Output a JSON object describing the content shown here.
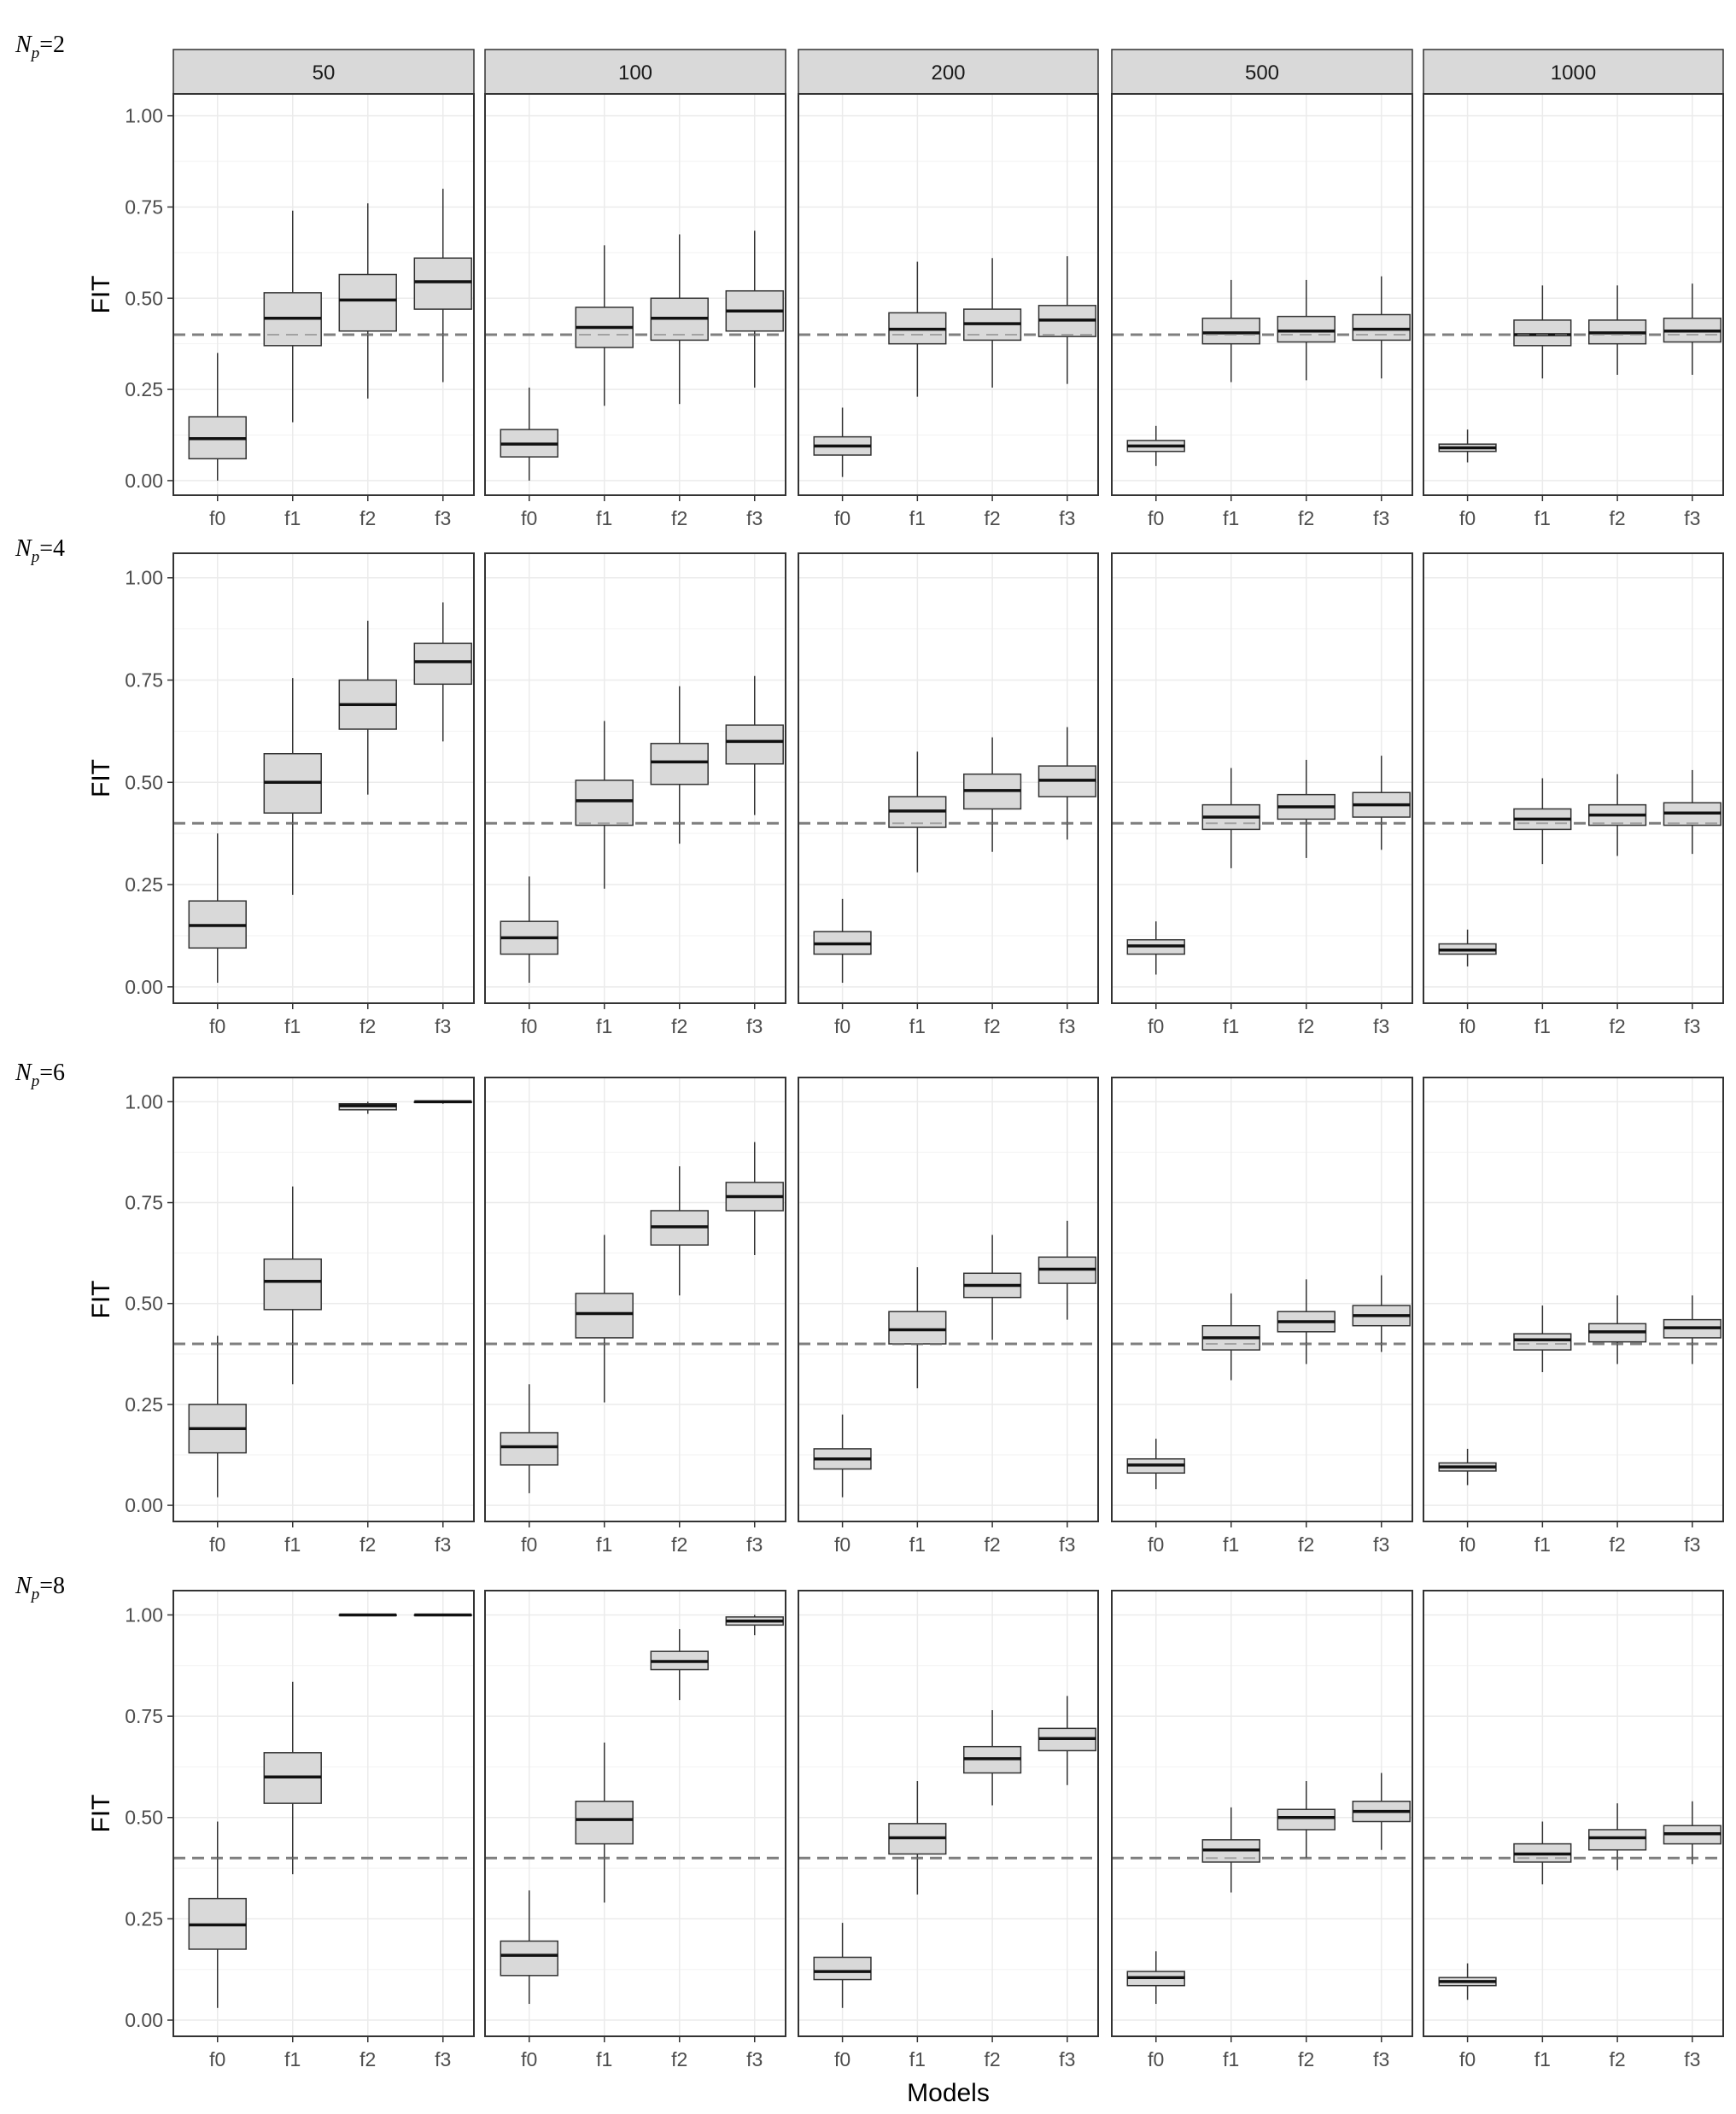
{
  "chart_data": {
    "type": "boxplot",
    "facet_columns": [
      "50",
      "100",
      "200",
      "500",
      "1000"
    ],
    "facet_rows": [
      {
        "label_var": "N",
        "label_sub": "p",
        "label_value": "=2"
      },
      {
        "label_var": "N",
        "label_sub": "p",
        "label_value": "=4"
      },
      {
        "label_var": "N",
        "label_sub": "p",
        "label_value": "=6"
      },
      {
        "label_var": "N",
        "label_sub": "p",
        "label_value": "=8"
      }
    ],
    "categories": [
      "f0",
      "f1",
      "f2",
      "f3"
    ],
    "ylabel": "FIT",
    "xlabel": "Models",
    "ylim": [
      -0.04,
      1.06
    ],
    "yticks": [
      0.0,
      0.25,
      0.5,
      0.75,
      1.0
    ],
    "ytick_labels": [
      "0.00",
      "0.25",
      "0.50",
      "0.75",
      "1.00"
    ],
    "reference_line": 0.4,
    "grid": true,
    "box_fill": "#d9d9d9",
    "panels": [
      [
        [
          [
            0.0,
            0.06,
            0.115,
            0.175,
            0.35
          ],
          [
            0.16,
            0.37,
            0.445,
            0.515,
            0.74
          ],
          [
            0.225,
            0.41,
            0.495,
            0.565,
            0.76
          ],
          [
            0.27,
            0.47,
            0.545,
            0.61,
            0.8
          ]
        ],
        [
          [
            0.0,
            0.065,
            0.1,
            0.14,
            0.255
          ],
          [
            0.205,
            0.365,
            0.42,
            0.475,
            0.645
          ],
          [
            0.21,
            0.385,
            0.445,
            0.5,
            0.675
          ],
          [
            0.255,
            0.41,
            0.465,
            0.52,
            0.685
          ]
        ],
        [
          [
            0.01,
            0.07,
            0.095,
            0.12,
            0.2
          ],
          [
            0.23,
            0.375,
            0.415,
            0.46,
            0.6
          ],
          [
            0.255,
            0.385,
            0.43,
            0.47,
            0.61
          ],
          [
            0.265,
            0.395,
            0.44,
            0.48,
            0.615
          ]
        ],
        [
          [
            0.04,
            0.08,
            0.095,
            0.11,
            0.15
          ],
          [
            0.27,
            0.375,
            0.405,
            0.445,
            0.55
          ],
          [
            0.275,
            0.38,
            0.41,
            0.45,
            0.55
          ],
          [
            0.28,
            0.385,
            0.415,
            0.455,
            0.56
          ]
        ],
        [
          [
            0.05,
            0.08,
            0.09,
            0.1,
            0.14
          ],
          [
            0.28,
            0.37,
            0.4,
            0.44,
            0.535
          ],
          [
            0.29,
            0.375,
            0.405,
            0.44,
            0.535
          ],
          [
            0.29,
            0.38,
            0.41,
            0.445,
            0.54
          ]
        ]
      ],
      [
        [
          [
            0.01,
            0.095,
            0.15,
            0.21,
            0.375
          ],
          [
            0.225,
            0.425,
            0.5,
            0.57,
            0.755
          ],
          [
            0.47,
            0.63,
            0.69,
            0.75,
            0.895
          ],
          [
            0.6,
            0.74,
            0.795,
            0.84,
            0.94
          ]
        ],
        [
          [
            0.01,
            0.08,
            0.12,
            0.16,
            0.27
          ],
          [
            0.24,
            0.395,
            0.455,
            0.505,
            0.65
          ],
          [
            0.35,
            0.495,
            0.55,
            0.595,
            0.735
          ],
          [
            0.42,
            0.545,
            0.6,
            0.64,
            0.76
          ]
        ],
        [
          [
            0.01,
            0.08,
            0.105,
            0.135,
            0.215
          ],
          [
            0.28,
            0.39,
            0.43,
            0.465,
            0.575
          ],
          [
            0.33,
            0.435,
            0.48,
            0.52,
            0.61
          ],
          [
            0.36,
            0.465,
            0.505,
            0.54,
            0.635
          ]
        ],
        [
          [
            0.03,
            0.08,
            0.1,
            0.115,
            0.16
          ],
          [
            0.29,
            0.385,
            0.415,
            0.445,
            0.535
          ],
          [
            0.315,
            0.41,
            0.44,
            0.47,
            0.555
          ],
          [
            0.335,
            0.415,
            0.445,
            0.475,
            0.565
          ]
        ],
        [
          [
            0.05,
            0.08,
            0.09,
            0.105,
            0.14
          ],
          [
            0.3,
            0.385,
            0.41,
            0.435,
            0.51
          ],
          [
            0.32,
            0.395,
            0.42,
            0.445,
            0.52
          ],
          [
            0.325,
            0.395,
            0.425,
            0.45,
            0.53
          ]
        ]
      ],
      [
        [
          [
            0.02,
            0.13,
            0.19,
            0.25,
            0.42
          ],
          [
            0.3,
            0.485,
            0.555,
            0.61,
            0.79
          ],
          [
            0.97,
            0.98,
            0.99,
            0.995,
            1.0
          ],
          [
            0.995,
            0.998,
            1.0,
            1.0,
            1.0
          ]
        ],
        [
          [
            0.03,
            0.1,
            0.145,
            0.18,
            0.3
          ],
          [
            0.255,
            0.415,
            0.475,
            0.525,
            0.67
          ],
          [
            0.52,
            0.645,
            0.69,
            0.73,
            0.84
          ],
          [
            0.62,
            0.73,
            0.765,
            0.8,
            0.9
          ]
        ],
        [
          [
            0.02,
            0.09,
            0.115,
            0.14,
            0.225
          ],
          [
            0.29,
            0.4,
            0.435,
            0.48,
            0.59
          ],
          [
            0.41,
            0.515,
            0.545,
            0.575,
            0.67
          ],
          [
            0.46,
            0.55,
            0.585,
            0.615,
            0.705
          ]
        ],
        [
          [
            0.04,
            0.08,
            0.1,
            0.115,
            0.165
          ],
          [
            0.31,
            0.385,
            0.415,
            0.445,
            0.525
          ],
          [
            0.35,
            0.43,
            0.455,
            0.48,
            0.56
          ],
          [
            0.38,
            0.445,
            0.47,
            0.495,
            0.57
          ]
        ],
        [
          [
            0.05,
            0.085,
            0.095,
            0.105,
            0.14
          ],
          [
            0.33,
            0.385,
            0.41,
            0.425,
            0.495
          ],
          [
            0.35,
            0.405,
            0.43,
            0.45,
            0.52
          ],
          [
            0.35,
            0.415,
            0.44,
            0.46,
            0.52
          ]
        ]
      ],
      [
        [
          [
            0.03,
            0.175,
            0.235,
            0.3,
            0.49
          ],
          [
            0.36,
            0.535,
            0.6,
            0.66,
            0.835
          ],
          [
            1.0,
            1.0,
            1.0,
            1.0,
            1.0
          ],
          [
            1.0,
            1.0,
            1.0,
            1.0,
            1.0
          ]
        ],
        [
          [
            0.04,
            0.11,
            0.16,
            0.195,
            0.32
          ],
          [
            0.29,
            0.435,
            0.495,
            0.54,
            0.685
          ],
          [
            0.79,
            0.865,
            0.885,
            0.91,
            0.965
          ],
          [
            0.95,
            0.975,
            0.985,
            0.995,
            1.0
          ]
        ],
        [
          [
            0.03,
            0.1,
            0.12,
            0.155,
            0.24
          ],
          [
            0.31,
            0.41,
            0.45,
            0.485,
            0.59
          ],
          [
            0.53,
            0.61,
            0.645,
            0.675,
            0.765
          ],
          [
            0.58,
            0.665,
            0.695,
            0.72,
            0.8
          ]
        ],
        [
          [
            0.04,
            0.085,
            0.105,
            0.12,
            0.17
          ],
          [
            0.315,
            0.39,
            0.42,
            0.445,
            0.525
          ],
          [
            0.4,
            0.47,
            0.5,
            0.52,
            0.59
          ],
          [
            0.42,
            0.49,
            0.515,
            0.54,
            0.61
          ]
        ],
        [
          [
            0.05,
            0.085,
            0.095,
            0.105,
            0.14
          ],
          [
            0.335,
            0.39,
            0.41,
            0.435,
            0.49
          ],
          [
            0.37,
            0.42,
            0.45,
            0.47,
            0.535
          ],
          [
            0.385,
            0.435,
            0.46,
            0.48,
            0.54
          ]
        ]
      ]
    ]
  }
}
